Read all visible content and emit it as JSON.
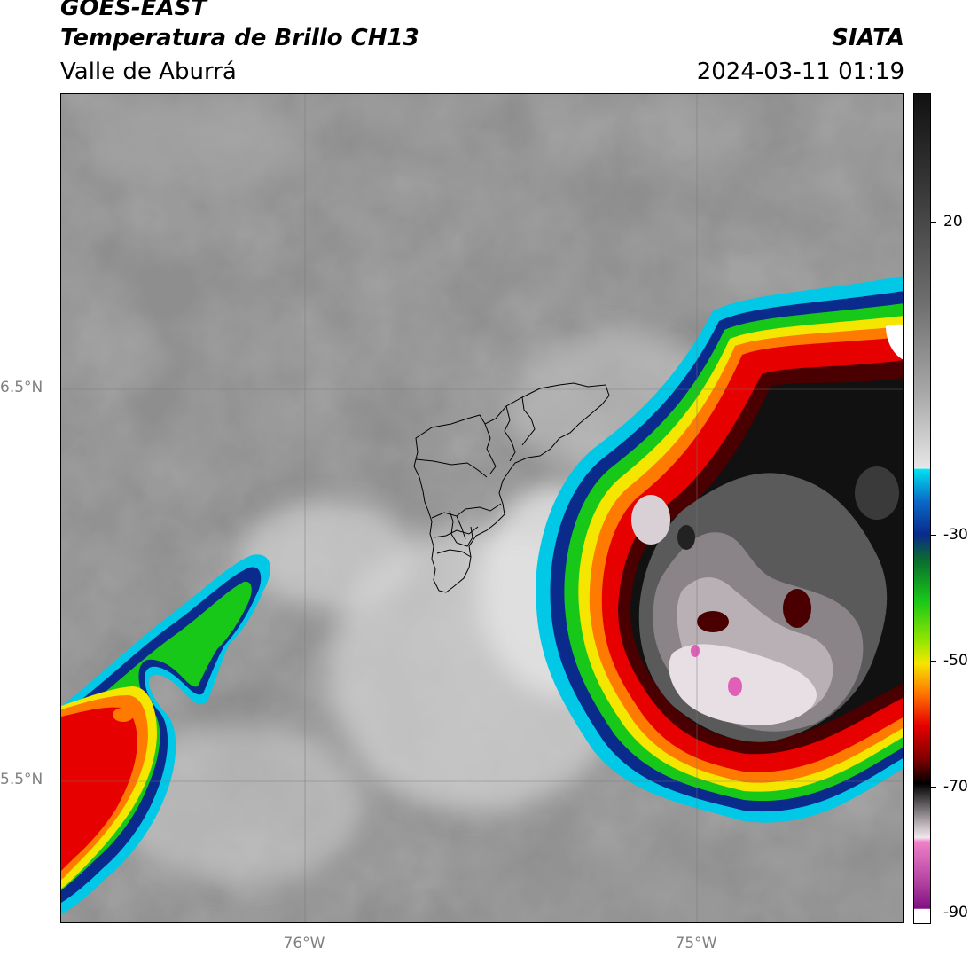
{
  "header": {
    "title": "GOES-EAST",
    "subtitle": "Temperatura de Brillo CH13",
    "region": "Valle de Aburrá",
    "organization": "SIATA",
    "datetime": "2024-03-11 01:19"
  },
  "map": {
    "latitude_labels": [
      "6.5°N",
      "5.5°N"
    ],
    "longitude_labels": [
      "76°W",
      "75°W"
    ],
    "background": "grey brightness temperature field",
    "features": [
      "deep convective cloud cluster east",
      "convective cloud cluster southwest",
      "Valle de Aburrá municipal boundaries"
    ]
  },
  "colorbar": {
    "tick_labels": [
      "20",
      "-30",
      "-50",
      "-70",
      "-90"
    ],
    "colors": {
      "warm": "#111111",
      "mid_grey": "#9a9a9a",
      "light": "#f0f0f0",
      "cyan": "#00c8e6",
      "blue": "#0a2a8c",
      "green": "#18c818",
      "yellow": "#f5e600",
      "orange": "#ff7a00",
      "red": "#e60000",
      "dark_red": "#4a0000",
      "black": "#000000",
      "pale": "#e8dfe4",
      "pink": "#e060b8",
      "purple": "#801080",
      "white": "#ffffff"
    }
  }
}
